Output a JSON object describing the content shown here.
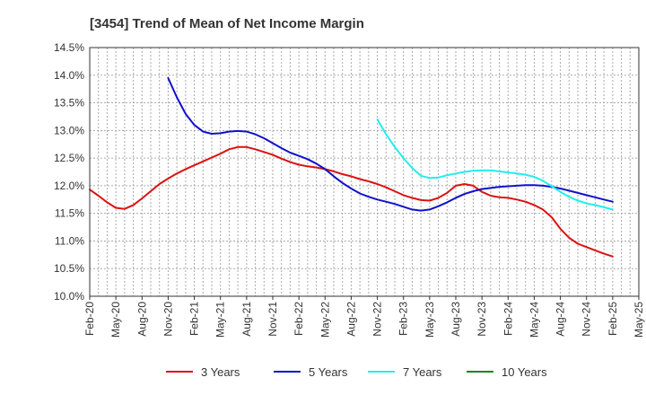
{
  "chart_data": {
    "type": "line",
    "title": "[3454]  Trend of Mean of Net Income Margin",
    "xlabel": "",
    "ylabel": "",
    "ylim": [
      10.0,
      14.5
    ],
    "y_ticks": [
      "10.0%",
      "10.5%",
      "11.0%",
      "11.5%",
      "12.0%",
      "12.5%",
      "13.0%",
      "13.5%",
      "14.0%",
      "14.5%"
    ],
    "y_tick_values": [
      10.0,
      10.5,
      11.0,
      11.5,
      12.0,
      12.5,
      13.0,
      13.5,
      14.0,
      14.5
    ],
    "x_range": [
      "2020-02",
      "2025-05"
    ],
    "x_ticks": [
      "Feb-20",
      "May-20",
      "Aug-20",
      "Nov-20",
      "Feb-21",
      "May-21",
      "Aug-21",
      "Nov-21",
      "Feb-22",
      "May-22",
      "Aug-22",
      "Nov-22",
      "Feb-23",
      "May-23",
      "Aug-23",
      "Nov-23",
      "Feb-24",
      "May-24",
      "Aug-24",
      "Nov-24",
      "Feb-25",
      "May-25"
    ],
    "grid": true,
    "legend_position": "bottom",
    "series": [
      {
        "name": "3 Years",
        "color": "#dd1111",
        "x": [
          "2020-02",
          "2020-03",
          "2020-04",
          "2020-05",
          "2020-06",
          "2020-07",
          "2020-08",
          "2020-09",
          "2020-10",
          "2020-11",
          "2020-12",
          "2021-01",
          "2021-02",
          "2021-03",
          "2021-04",
          "2021-05",
          "2021-06",
          "2021-07",
          "2021-08",
          "2021-09",
          "2021-10",
          "2021-11",
          "2021-12",
          "2022-01",
          "2022-02",
          "2022-03",
          "2022-04",
          "2022-05",
          "2022-06",
          "2022-07",
          "2022-08",
          "2022-09",
          "2022-10",
          "2022-11",
          "2022-12",
          "2023-01",
          "2023-02",
          "2023-03",
          "2023-04",
          "2023-05",
          "2023-06",
          "2023-07",
          "2023-08",
          "2023-09",
          "2023-10",
          "2023-11",
          "2023-12",
          "2024-01",
          "2024-02",
          "2024-03",
          "2024-04",
          "2024-05",
          "2024-06",
          "2024-07",
          "2024-08",
          "2024-09",
          "2024-10",
          "2024-11",
          "2024-12",
          "2025-01",
          "2025-02"
        ],
        "values": [
          11.93,
          11.82,
          11.7,
          11.6,
          11.58,
          11.65,
          11.77,
          11.9,
          12.03,
          12.13,
          12.22,
          12.3,
          12.37,
          12.44,
          12.51,
          12.58,
          12.66,
          12.7,
          12.7,
          12.66,
          12.61,
          12.56,
          12.49,
          12.43,
          12.38,
          12.35,
          12.33,
          12.3,
          12.26,
          12.21,
          12.17,
          12.12,
          12.08,
          12.03,
          11.97,
          11.9,
          11.83,
          11.78,
          11.74,
          11.73,
          11.78,
          11.87,
          12.0,
          12.03,
          12.0,
          11.89,
          11.82,
          11.79,
          11.78,
          11.75,
          11.71,
          11.65,
          11.57,
          11.43,
          11.22,
          11.06,
          10.95,
          10.89,
          10.83,
          10.77,
          10.72
        ]
      },
      {
        "name": "5 Years",
        "color": "#1111cc",
        "x": [
          "2020-11",
          "2020-12",
          "2021-01",
          "2021-02",
          "2021-03",
          "2021-04",
          "2021-05",
          "2021-06",
          "2021-07",
          "2021-08",
          "2021-09",
          "2021-10",
          "2021-11",
          "2021-12",
          "2022-01",
          "2022-02",
          "2022-03",
          "2022-04",
          "2022-05",
          "2022-06",
          "2022-07",
          "2022-08",
          "2022-09",
          "2022-10",
          "2022-11",
          "2022-12",
          "2023-01",
          "2023-02",
          "2023-03",
          "2023-04",
          "2023-05",
          "2023-06",
          "2023-07",
          "2023-08",
          "2023-09",
          "2023-10",
          "2023-11",
          "2023-12",
          "2024-01",
          "2024-02",
          "2024-03",
          "2024-04",
          "2024-05",
          "2024-06",
          "2024-07",
          "2024-08",
          "2024-09",
          "2024-10",
          "2024-11",
          "2024-12",
          "2025-01",
          "2025-02"
        ],
        "values": [
          13.95,
          13.6,
          13.3,
          13.1,
          12.98,
          12.94,
          12.95,
          12.98,
          12.99,
          12.98,
          12.93,
          12.86,
          12.77,
          12.68,
          12.6,
          12.54,
          12.48,
          12.4,
          12.3,
          12.17,
          12.05,
          11.95,
          11.86,
          11.8,
          11.75,
          11.71,
          11.67,
          11.62,
          11.57,
          11.55,
          11.57,
          11.63,
          11.7,
          11.78,
          11.85,
          11.9,
          11.94,
          11.96,
          11.98,
          11.99,
          12.0,
          12.01,
          12.01,
          12.0,
          11.98,
          11.95,
          11.91,
          11.87,
          11.83,
          11.79,
          11.75,
          11.71
        ]
      },
      {
        "name": "7 Years",
        "color": "#22eeee",
        "x": [
          "2022-11",
          "2022-12",
          "2023-01",
          "2023-02",
          "2023-03",
          "2023-04",
          "2023-05",
          "2023-06",
          "2023-07",
          "2023-08",
          "2023-09",
          "2023-10",
          "2023-11",
          "2023-12",
          "2024-01",
          "2024-02",
          "2024-03",
          "2024-04",
          "2024-05",
          "2024-06",
          "2024-07",
          "2024-08",
          "2024-09",
          "2024-10",
          "2024-11",
          "2024-12",
          "2025-01",
          "2025-02"
        ],
        "values": [
          13.2,
          12.93,
          12.7,
          12.5,
          12.32,
          12.18,
          12.14,
          12.15,
          12.19,
          12.22,
          12.25,
          12.27,
          12.28,
          12.28,
          12.26,
          12.24,
          12.22,
          12.2,
          12.16,
          12.09,
          11.99,
          11.89,
          11.8,
          11.73,
          11.68,
          11.65,
          11.61,
          11.57
        ]
      },
      {
        "name": "10 Years",
        "color": "#118811",
        "x": [],
        "values": []
      }
    ]
  }
}
